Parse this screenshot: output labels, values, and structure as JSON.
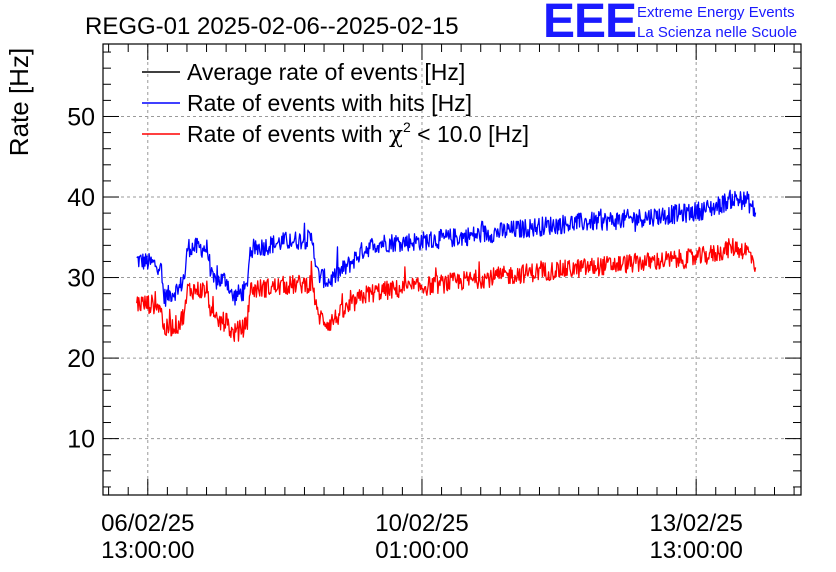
{
  "chart_data": {
    "type": "line",
    "title": "REGG-01 2025-02-06--2025-02-15",
    "ylabel": "Rate [Hz]",
    "xlabel": "",
    "ylim": [
      3,
      59
    ],
    "x_range_days": [
      5.97,
      14.88
    ],
    "x_start_date": "2025-02-06",
    "grid": true,
    "x_ticks": [
      {
        "day": 6.5417,
        "date": "06/02/25",
        "time": "13:00:00"
      },
      {
        "day": 10.0417,
        "date": "10/02/25",
        "time": "01:00:00"
      },
      {
        "day": 13.5417,
        "date": "13/02/25",
        "time": "13:00:00"
      }
    ],
    "y_ticks": [
      10,
      20,
      30,
      40,
      50
    ],
    "legend": {
      "placement": "top-left",
      "entries": [
        {
          "label": "Average rate of events [Hz]",
          "color": "#000000"
        },
        {
          "label": "Rate of events with hits [Hz]",
          "color": "#0000ff"
        },
        {
          "label_prefix": "Rate of events with ",
          "label_symbol": "χ",
          "label_sup": "2",
          "label_suffix": " < 10.0 [Hz]",
          "color": "#ff0000"
        }
      ]
    },
    "series": [
      {
        "name": "Rate of events with hits [Hz]",
        "color": "#0000ff",
        "points": [
          [
            6.4,
            32.2
          ],
          [
            6.7,
            31.5
          ],
          [
            6.75,
            27.5
          ],
          [
            6.95,
            28.7
          ],
          [
            7.02,
            30.5
          ],
          [
            7.05,
            33.8
          ],
          [
            7.3,
            33.6
          ],
          [
            7.37,
            29.5
          ],
          [
            7.55,
            29.8
          ],
          [
            7.62,
            27.5
          ],
          [
            7.8,
            28.5
          ],
          [
            7.85,
            33.5
          ],
          [
            8.3,
            34.5
          ],
          [
            8.65,
            34.8
          ],
          [
            8.7,
            30.5
          ],
          [
            8.85,
            29.5
          ],
          [
            9.1,
            31.5
          ],
          [
            9.3,
            33.5
          ],
          [
            9.5,
            34.3
          ],
          [
            10.0,
            34.5
          ],
          [
            10.5,
            35.0
          ],
          [
            11.0,
            35.6
          ],
          [
            11.5,
            36.3
          ],
          [
            12.0,
            36.8
          ],
          [
            12.5,
            37.1
          ],
          [
            13.0,
            37.6
          ],
          [
            13.5,
            38.1
          ],
          [
            13.8,
            38.8
          ],
          [
            14.0,
            39.8
          ],
          [
            14.2,
            39.5
          ],
          [
            14.3,
            38.0
          ]
        ]
      },
      {
        "name": "Rate of events with χ² < 10.0 [Hz]",
        "color": "#ff0000",
        "points": [
          [
            6.4,
            26.8
          ],
          [
            6.7,
            26.6
          ],
          [
            6.75,
            23.5
          ],
          [
            6.95,
            24.3
          ],
          [
            7.02,
            26.0
          ],
          [
            7.05,
            28.5
          ],
          [
            7.3,
            28.4
          ],
          [
            7.37,
            24.5
          ],
          [
            7.55,
            24.5
          ],
          [
            7.62,
            23.0
          ],
          [
            7.8,
            24.0
          ],
          [
            7.85,
            28.5
          ],
          [
            8.3,
            29.0
          ],
          [
            8.65,
            29.3
          ],
          [
            8.7,
            25.5
          ],
          [
            8.85,
            24.3
          ],
          [
            9.1,
            26.2
          ],
          [
            9.3,
            27.8
          ],
          [
            9.5,
            28.3
          ],
          [
            10.0,
            28.8
          ],
          [
            10.5,
            29.5
          ],
          [
            11.0,
            30.1
          ],
          [
            11.5,
            30.7
          ],
          [
            12.0,
            31.1
          ],
          [
            12.5,
            31.6
          ],
          [
            13.0,
            32.0
          ],
          [
            13.5,
            32.4
          ],
          [
            13.8,
            33.0
          ],
          [
            14.0,
            33.8
          ],
          [
            14.2,
            33.3
          ],
          [
            14.3,
            31.5
          ]
        ]
      }
    ],
    "noise_amplitude": 1.2
  },
  "logo": {
    "mark": "EEE",
    "line1": "Extreme Energy Events",
    "line2": "La Scienza nelle Scuole",
    "color": "#1a1aff"
  }
}
